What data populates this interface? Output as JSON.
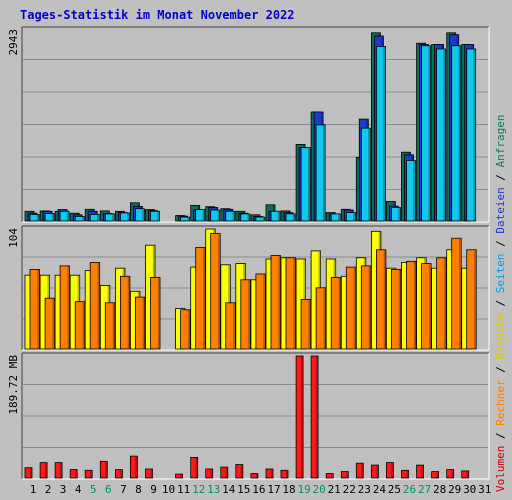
{
  "chart_data": {
    "type": "bar",
    "title": "Tages-Statistik im Monat November 2022",
    "categories": [
      "1",
      "2",
      "3",
      "4",
      "5",
      "6",
      "7",
      "8",
      "9",
      "10",
      "11",
      "12",
      "13",
      "14",
      "15",
      "16",
      "17",
      "18",
      "19",
      "20",
      "21",
      "22",
      "23",
      "24",
      "25",
      "26",
      "27",
      "28",
      "29",
      "30",
      "31"
    ],
    "weekend_days": [
      "5",
      "6",
      "12",
      "13",
      "19",
      "20",
      "26",
      "27"
    ],
    "panels": [
      {
        "id": "top",
        "ymax_label": "2943",
        "ylim": [
          0,
          2943
        ],
        "series": [
          {
            "name": "Anfragen",
            "color": "#0a6e5a",
            "values": [
              150,
              155,
              150,
              120,
              180,
              155,
              150,
              280,
              175,
              null,
              85,
              240,
              220,
              190,
              150,
              95,
              250,
              155,
              1180,
              1680,
              130,
              180,
              980,
              2900,
              300,
              1060,
              2740,
              2720,
              2900,
              2720,
              null
            ]
          },
          {
            "name": "Dateien",
            "color": "#1a3ccc",
            "values": [
              120,
              150,
              175,
              95,
              150,
              115,
              130,
              225,
              160,
              null,
              75,
              170,
              210,
              180,
              120,
              70,
              150,
              130,
              1130,
              1680,
              110,
              170,
              1570,
              2850,
              230,
              1020,
              2720,
              2720,
              2870,
              2720,
              null
            ]
          },
          {
            "name": "Seiten",
            "color": "#12c8ec",
            "values": [
              100,
              115,
              150,
              70,
              100,
              110,
              125,
              190,
              150,
              null,
              60,
              175,
              170,
              150,
              110,
              60,
              150,
              110,
              1130,
              1480,
              110,
              130,
              1430,
              2690,
              210,
              930,
              2700,
              2650,
              2700,
              2650,
              null
            ]
          }
        ]
      },
      {
        "id": "middle",
        "ymax_label": "104",
        "ylim": [
          0,
          104
        ],
        "series": [
          {
            "name": "Besuche",
            "color": "#ffff00",
            "values": [
              64,
              64,
              64,
              64,
              68,
              55,
              70,
              50,
              90,
              null,
              35,
              71,
              104,
              73,
              74,
              60,
              78,
              79,
              78,
              85,
              78,
              63,
              79,
              102,
              70,
              75,
              79,
              70,
              86,
              70,
              null
            ]
          },
          {
            "name": "Rechner",
            "color": "#ff8000",
            "values": [
              69,
              44,
              72,
              41,
              75,
              40,
              63,
              45,
              62,
              null,
              34,
              88,
              100,
              40,
              60,
              65,
              81,
              79,
              43,
              53,
              62,
              71,
              72,
              86,
              69,
              76,
              74,
              79,
              96,
              86,
              null
            ]
          }
        ]
      },
      {
        "id": "bottom",
        "ymax_label": "189.72 MB",
        "ylim": [
          0,
          189.72
        ],
        "series": [
          {
            "name": "Volumen",
            "color": "#ff1a1a",
            "values": [
              16,
              24,
              24,
              13,
              12,
              26,
              13,
              34,
              14,
              null,
              6,
              32,
              14,
              17,
              21,
              7,
              14,
              12,
              189.72,
              189.72,
              7,
              10,
              23,
              20,
              24,
              12,
              20,
              10,
              13,
              11,
              null
            ]
          }
        ]
      }
    ],
    "legend": [
      "Volumen",
      "Rechner",
      "Besuche",
      "Seiten",
      "Dateien",
      "Anfragen"
    ],
    "legend_colors": {
      "Volumen": "#cc0000",
      "Rechner": "#ff8000",
      "Besuche": "#e6c800",
      "Seiten": "#00a0e0",
      "Dateien": "#1a3ccc",
      "Anfragen": "#0a8060"
    },
    "legend_separator": " / ",
    "colors": {
      "background": "#c0c0c0",
      "plot": "#bfbfbf",
      "title": "#0000cc",
      "weekend": "#009060",
      "weekday": "#000000"
    }
  }
}
